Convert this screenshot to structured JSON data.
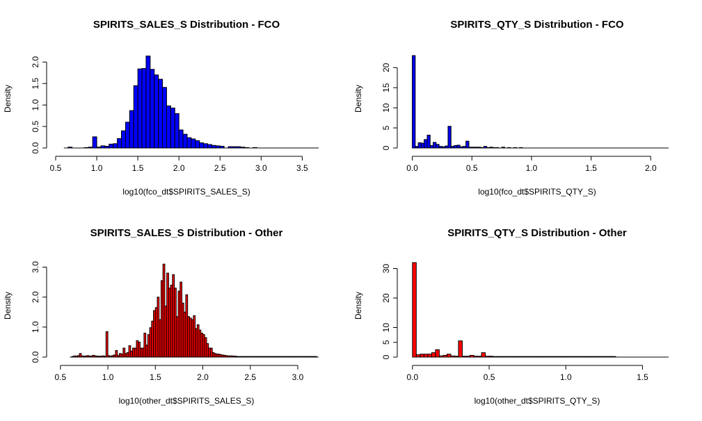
{
  "chart_data": [
    {
      "type": "bar",
      "title": "SPIRITS_SALES_S Distribution - FCO",
      "xlabel": "log10(fco_dt$SPIRITS_SALES_S)",
      "ylabel": "Density",
      "xlim": [
        0.5,
        3.7
      ],
      "ylim": [
        0,
        2.15
      ],
      "x_ticks": [
        "0.5",
        "1.0",
        "1.5",
        "2.0",
        "2.5",
        "3.0",
        "3.5"
      ],
      "y_ticks": [
        "0.0",
        "0.5",
        "1.0",
        "1.5",
        "2.0"
      ],
      "fill": "#0000ff",
      "bin_width": 0.05,
      "bins_start": [
        0.6,
        0.65,
        0.7,
        0.75,
        0.8,
        0.85,
        0.9,
        0.95,
        1.0,
        1.05,
        1.1,
        1.15,
        1.2,
        1.25,
        1.3,
        1.35,
        1.4,
        1.45,
        1.5,
        1.55,
        1.6,
        1.65,
        1.7,
        1.75,
        1.8,
        1.85,
        1.9,
        1.95,
        2.0,
        2.05,
        2.1,
        2.15,
        2.2,
        2.25,
        2.3,
        2.35,
        2.4,
        2.45,
        2.5,
        2.55,
        2.6,
        2.65,
        2.7,
        2.75,
        2.8,
        2.85,
        2.9,
        2.95,
        3.0,
        3.05,
        3.1,
        3.15,
        3.2,
        3.25,
        3.3,
        3.35,
        3.4,
        3.45,
        3.5
      ],
      "values": [
        0.0,
        0.02,
        0.0,
        0.0,
        0.0,
        0.01,
        0.02,
        0.26,
        0.02,
        0.05,
        0.04,
        0.09,
        0.1,
        0.22,
        0.4,
        0.6,
        0.87,
        1.45,
        1.84,
        1.85,
        2.14,
        1.83,
        1.7,
        1.6,
        1.41,
        0.98,
        0.93,
        0.8,
        0.42,
        0.32,
        0.24,
        0.21,
        0.17,
        0.12,
        0.1,
        0.08,
        0.06,
        0.05,
        0.04,
        0.0,
        0.03,
        0.03,
        0.03,
        0.02,
        0.01,
        0.0,
        0.01,
        0.0,
        0.0,
        0.0,
        0.0,
        0.0,
        0.0,
        0.0,
        0.0,
        0.0,
        0.0,
        0.0,
        0.0
      ]
    },
    {
      "type": "bar",
      "title": "SPIRITS_QTY_S Distribution - FCO",
      "xlabel": "log10(fco_dt$SPIRITS_QTY_S)",
      "ylabel": "Density",
      "xlim": [
        -0.05,
        2.15
      ],
      "ylim": [
        0,
        23
      ],
      "x_ticks": [
        "0.0",
        "0.5",
        "1.0",
        "1.5",
        "2.0"
      ],
      "y_ticks": [
        "0",
        "5",
        "10",
        "15",
        "20"
      ],
      "fill": "#0000ff",
      "bin_width": 0.025,
      "bins_start": [
        0.0,
        0.025,
        0.05,
        0.075,
        0.1,
        0.125,
        0.15,
        0.175,
        0.2,
        0.225,
        0.25,
        0.275,
        0.3,
        0.325,
        0.35,
        0.375,
        0.4,
        0.425,
        0.45,
        0.475,
        0.5,
        0.525,
        0.55,
        0.575,
        0.6,
        0.625,
        0.65,
        0.675,
        0.7,
        0.725,
        0.75,
        0.775,
        0.8,
        0.825,
        0.85,
        0.875,
        0.9,
        0.925,
        0.95,
        0.975,
        1.0,
        1.025,
        1.05,
        1.075,
        1.1,
        1.125,
        1.15,
        1.175,
        1.2,
        1.225,
        1.25,
        1.275,
        1.3,
        1.325,
        1.35,
        1.375,
        1.4,
        1.425,
        1.45,
        1.475,
        1.5,
        1.525,
        1.55,
        1.575,
        1.6,
        1.625,
        1.65,
        1.675,
        1.7,
        1.725,
        1.75,
        1.775,
        1.8,
        1.825,
        1.85,
        1.875,
        1.9,
        1.925,
        1.95,
        1.975,
        2.0,
        2.025,
        2.05,
        2.075
      ],
      "values": [
        23.0,
        0.4,
        1.3,
        1.2,
        2.1,
        3.2,
        0.6,
        1.4,
        0.9,
        0.4,
        0.3,
        0.5,
        5.4,
        0.4,
        0.6,
        0.7,
        0.3,
        0.4,
        1.7,
        0.2,
        0.2,
        0.2,
        0.2,
        0.1,
        0.4,
        0.1,
        0.2,
        0.1,
        0.1,
        0.0,
        0.2,
        0.0,
        0.1,
        0.0,
        0.1,
        0.0,
        0.1,
        0.0,
        0.0,
        0.0,
        0.0,
        0.0,
        0.0,
        0.0,
        0.0,
        0.0,
        0.0,
        0.0,
        0.0,
        0.0,
        0.0,
        0.0,
        0.0,
        0.0,
        0.0,
        0.0,
        0.0,
        0.0,
        0.0,
        0.0,
        0.0,
        0.0,
        0.0,
        0.0,
        0.0,
        0.0,
        0.0,
        0.0,
        0.0,
        0.0,
        0.0,
        0.0,
        0.0,
        0.0,
        0.0,
        0.0,
        0.0,
        0.0,
        0.0,
        0.0,
        0.0,
        0.0,
        0.0,
        0.0
      ]
    },
    {
      "type": "bar",
      "title": "SPIRITS_SALES_S Distribution - Other",
      "xlabel": "log10(other_dt$SPIRITS_SALES_S)",
      "ylabel": "Density",
      "xlim": [
        0.45,
        3.22
      ],
      "ylim": [
        0,
        3.15
      ],
      "x_ticks": [
        "0.5",
        "1.0",
        "1.5",
        "2.0",
        "2.5",
        "3.0"
      ],
      "y_ticks": [
        "0.0",
        "1.0",
        "2.0",
        "3.0"
      ],
      "fill": "#ff0000",
      "bin_width": 0.02,
      "bins_start": [
        0.6,
        0.62,
        0.64,
        0.66,
        0.68,
        0.7,
        0.72,
        0.74,
        0.76,
        0.78,
        0.8,
        0.82,
        0.84,
        0.86,
        0.88,
        0.9,
        0.92,
        0.94,
        0.96,
        0.98,
        1.0,
        1.02,
        1.04,
        1.06,
        1.08,
        1.1,
        1.12,
        1.14,
        1.16,
        1.18,
        1.2,
        1.22,
        1.24,
        1.26,
        1.28,
        1.3,
        1.32,
        1.34,
        1.36,
        1.38,
        1.4,
        1.42,
        1.44,
        1.46,
        1.48,
        1.5,
        1.52,
        1.54,
        1.56,
        1.58,
        1.6,
        1.62,
        1.64,
        1.66,
        1.68,
        1.7,
        1.72,
        1.74,
        1.76,
        1.78,
        1.8,
        1.82,
        1.84,
        1.86,
        1.88,
        1.9,
        1.92,
        1.94,
        1.96,
        1.98,
        2.0,
        2.02,
        2.04,
        2.06,
        2.08,
        2.1,
        2.12,
        2.14,
        2.16,
        2.18,
        2.2,
        2.22,
        2.24,
        2.26,
        2.28,
        2.3,
        2.32,
        2.34,
        2.36,
        2.38,
        2.4,
        2.42,
        2.44,
        2.46,
        2.48,
        2.5,
        2.52,
        2.54,
        2.56,
        2.58,
        2.6,
        2.62,
        2.64,
        2.66,
        2.68,
        2.7,
        2.72,
        2.74,
        2.76,
        2.78,
        2.8,
        2.82,
        2.84,
        2.86,
        2.88,
        2.9,
        2.92,
        2.94,
        2.96,
        2.98,
        3.0,
        3.02,
        3.04,
        3.06,
        3.08,
        3.1,
        3.12,
        3.14,
        3.16,
        3.18
      ],
      "values": [
        0.0,
        0.02,
        0.04,
        0.03,
        0.05,
        0.12,
        0.04,
        0.03,
        0.04,
        0.05,
        0.03,
        0.04,
        0.06,
        0.04,
        0.03,
        0.03,
        0.03,
        0.04,
        0.03,
        0.85,
        0.05,
        0.03,
        0.05,
        0.07,
        0.22,
        0.05,
        0.12,
        0.1,
        0.3,
        0.12,
        0.15,
        0.38,
        0.2,
        0.3,
        0.3,
        0.55,
        0.5,
        0.3,
        0.3,
        0.8,
        0.4,
        0.75,
        0.98,
        1.2,
        1.55,
        1.65,
        2.0,
        1.25,
        2.55,
        3.1,
        1.7,
        2.8,
        2.3,
        2.4,
        2.75,
        2.3,
        1.35,
        2.2,
        2.5,
        1.8,
        1.5,
        2.08,
        1.35,
        1.3,
        1.25,
        1.38,
        0.95,
        1.08,
        0.9,
        0.8,
        0.75,
        0.65,
        0.45,
        0.3,
        0.3,
        0.15,
        0.12,
        0.1,
        0.1,
        0.08,
        0.07,
        0.06,
        0.05,
        0.04,
        0.04,
        0.04,
        0.03,
        0.03,
        0.02,
        0.02,
        0.02,
        0.02,
        0.02,
        0.02,
        0.02,
        0.02,
        0.02,
        0.02,
        0.02,
        0.02,
        0.02,
        0.02,
        0.02,
        0.02,
        0.02,
        0.02,
        0.02,
        0.02,
        0.02,
        0.02,
        0.02,
        0.02,
        0.02,
        0.02,
        0.02,
        0.02,
        0.02,
        0.02,
        0.02,
        0.02,
        0.02,
        0.02,
        0.02,
        0.02,
        0.02,
        0.02,
        0.02,
        0.02,
        0.02,
        0.02
      ]
    },
    {
      "type": "bar",
      "title": "SPIRITS_QTY_S Distribution - Other",
      "xlabel": "log10(other_dt$SPIRITS_QTY_S)",
      "ylabel": "Density",
      "xlim": [
        -0.04,
        1.67
      ],
      "ylim": [
        0,
        32
      ],
      "x_ticks": [
        "0.0",
        "0.5",
        "1.0",
        "1.5"
      ],
      "y_ticks": [
        "0",
        "5",
        "10",
        "20",
        "30"
      ],
      "fill": "#ff0000",
      "bin_width": 0.025,
      "bins_start": [
        0.0,
        0.025,
        0.05,
        0.075,
        0.1,
        0.125,
        0.15,
        0.175,
        0.2,
        0.225,
        0.25,
        0.275,
        0.3,
        0.325,
        0.35,
        0.375,
        0.4,
        0.425,
        0.45,
        0.475,
        0.5,
        0.525,
        0.55,
        0.575,
        0.6,
        0.625,
        0.65,
        0.675,
        0.7,
        0.725,
        0.75,
        0.775,
        0.8,
        0.825,
        0.85,
        0.875,
        0.9,
        0.925,
        0.95,
        0.975,
        1.0,
        1.025,
        1.05,
        1.075,
        1.1,
        1.125,
        1.15,
        1.175,
        1.2,
        1.225,
        1.25,
        1.275,
        1.3,
        1.325,
        1.35,
        1.375,
        1.4,
        1.425,
        1.45,
        1.475,
        1.5,
        1.525,
        1.55,
        1.575,
        1.6
      ],
      "values": [
        32.0,
        0.8,
        1.0,
        1.0,
        1.0,
        1.5,
        2.5,
        0.4,
        0.6,
        1.0,
        0.4,
        0.3,
        5.5,
        0.3,
        0.3,
        0.6,
        0.3,
        0.3,
        1.5,
        0.3,
        0.3,
        0.2,
        0.2,
        0.2,
        0.2,
        0.2,
        0.2,
        0.2,
        0.2,
        0.2,
        0.2,
        0.2,
        0.2,
        0.2,
        0.2,
        0.2,
        0.2,
        0.2,
        0.2,
        0.2,
        0.2,
        0.2,
        0.2,
        0.2,
        0.2,
        0.2,
        0.2,
        0.2,
        0.2,
        0.2,
        0.2,
        0.2,
        0.2,
        0.0,
        0.0,
        0.0,
        0.0,
        0.0,
        0.0,
        0.0,
        0.0,
        0.0,
        0.0,
        0.0,
        0.0
      ]
    }
  ]
}
